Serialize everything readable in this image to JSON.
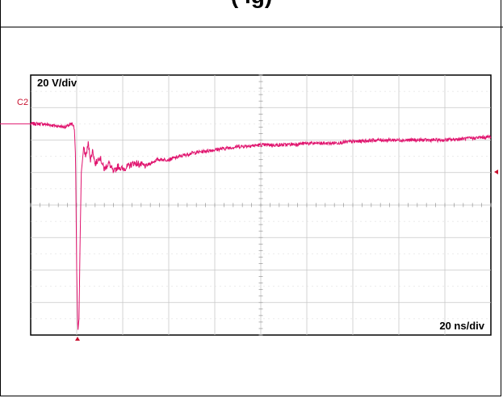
{
  "page_header": {
    "title_fragment": "(                                          ig)"
  },
  "chart_data": {
    "type": "line",
    "title": "",
    "channel_label": "C2",
    "vertical_scale_label": "20 V/div",
    "horizontal_scale_label": "20 ns/div",
    "trace_color": "#e0146e",
    "marker_color": "#c8102e",
    "grid": true,
    "divisions": {
      "x": 10,
      "y": 8
    },
    "xlim": [
      0,
      200
    ],
    "ylim": [
      -80,
      80
    ],
    "xunit": "ns",
    "yunit": "V",
    "series": [
      {
        "x": [
          0,
          5,
          10,
          15,
          18,
          19,
          19.5,
          20,
          20.5,
          21,
          21.5,
          22,
          23,
          24,
          25,
          26,
          27,
          28,
          30,
          32,
          34,
          36,
          38,
          40,
          45,
          50,
          55,
          60,
          65,
          70,
          80,
          90,
          100,
          110,
          120,
          130,
          140,
          150,
          160,
          170,
          180,
          190,
          200
        ],
        "values": [
          50,
          50,
          49,
          48,
          50,
          47,
          30,
          -40,
          -78,
          -70,
          -20,
          20,
          35,
          30,
          38,
          28,
          34,
          25,
          30,
          22,
          26,
          20,
          24,
          22,
          26,
          24,
          28,
          28,
          30,
          32,
          34,
          36,
          37,
          37,
          38,
          38,
          39,
          40,
          40,
          40,
          40,
          41,
          42
        ]
      }
    ]
  }
}
